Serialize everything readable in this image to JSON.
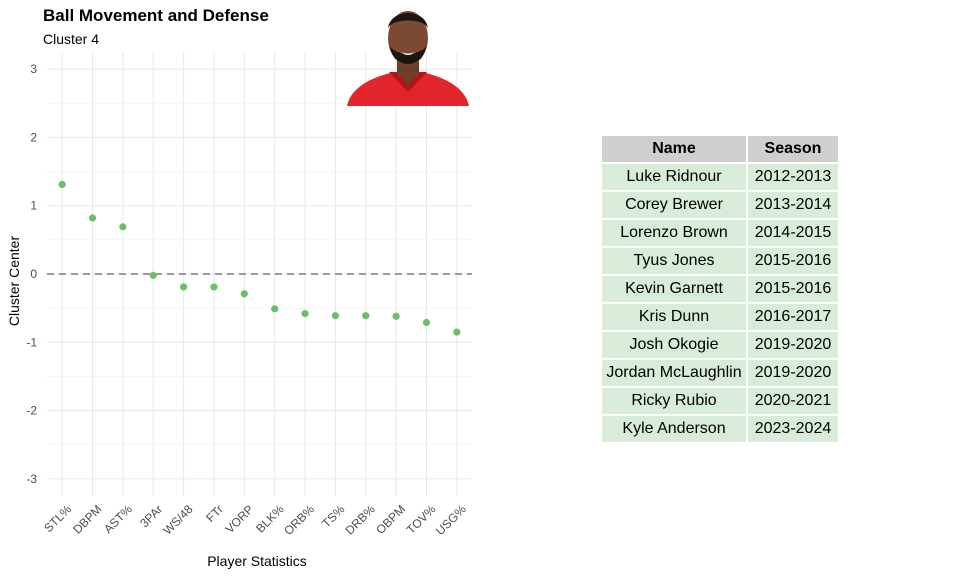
{
  "chart_data": {
    "type": "scatter",
    "title": "Ball Movement and Defense",
    "subtitle": "Cluster 4",
    "xlabel": "Player Statistics",
    "ylabel": "Cluster Center",
    "ylim": [
      -3.25,
      3.25
    ],
    "yticks": [
      -3,
      -2,
      -1,
      0,
      1,
      2,
      3
    ],
    "reference_line": 0,
    "categories": [
      "STL%",
      "DBPM",
      "AST%",
      "3PAr",
      "WS/48",
      "FTr",
      "VORP",
      "BLK%",
      "ORB%",
      "TS%",
      "DRB%",
      "OBPM",
      "TOV%",
      "USG%"
    ],
    "values": [
      1.31,
      0.82,
      0.69,
      -0.02,
      -0.19,
      -0.19,
      -0.29,
      -0.51,
      -0.58,
      -0.61,
      -0.61,
      -0.62,
      -0.71,
      -0.85
    ],
    "point_color": "#6abf69",
    "grid": true
  },
  "table": {
    "headers": [
      "Name",
      "Season"
    ],
    "rows": [
      [
        "Luke Ridnour",
        "2012-2013"
      ],
      [
        "Corey Brewer",
        "2013-2014"
      ],
      [
        "Lorenzo Brown",
        "2014-2015"
      ],
      [
        "Tyus Jones",
        "2015-2016"
      ],
      [
        "Kevin Garnett",
        "2015-2016"
      ],
      [
        "Kris Dunn",
        "2016-2017"
      ],
      [
        "Josh Okogie",
        "2019-2020"
      ],
      [
        "Jordan McLaughlin",
        "2019-2020"
      ],
      [
        "Ricky Rubio",
        "2020-2021"
      ],
      [
        "Kyle Anderson",
        "2023-2024"
      ]
    ],
    "header_color": "#cfcfcf",
    "row_color": "#d9ecd9"
  },
  "photo": {
    "icon": "player-headshot",
    "jersey_color": "#e2242c"
  }
}
